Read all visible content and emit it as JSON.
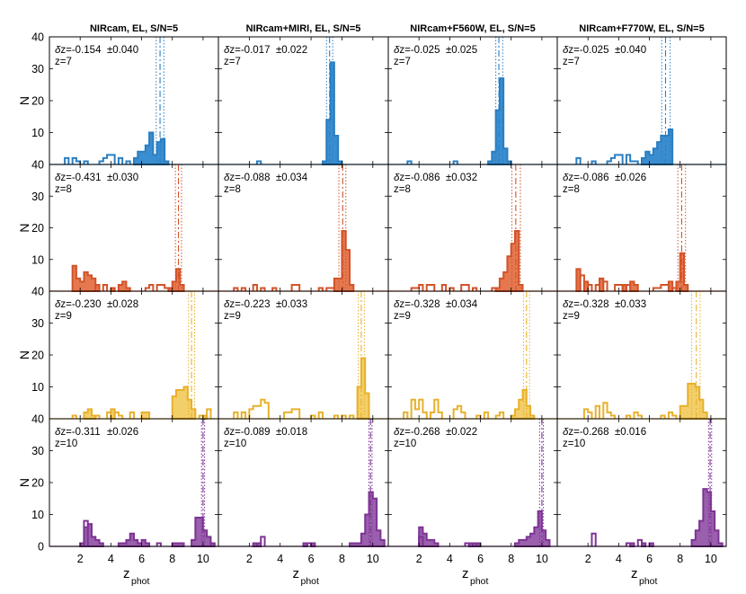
{
  "chart_data": {
    "type": "bar",
    "ylabel": "N",
    "xlabel_main": "z",
    "xlabel_sub": "phot",
    "xlim": [
      0,
      11
    ],
    "ylim": [
      0,
      40
    ],
    "xticks": [
      2,
      4,
      6,
      8,
      10
    ],
    "yticks": [
      0,
      10,
      20,
      30,
      40
    ],
    "grid": false,
    "columns": [
      "NIRcam, EL, S/N=5",
      "NIRcam+MIRI, EL, S/N=5",
      "NIRcam+F560W, EL, S/N=5",
      "NIRcam+F770W, EL, S/N=5"
    ],
    "rows": [
      {
        "label": "z=7",
        "true_z": 7,
        "color": "#2a7ec1",
        "fill": "#3a8ed0"
      },
      {
        "label": "z=8",
        "true_z": 8,
        "color": "#d2532a",
        "fill": "#e5784f"
      },
      {
        "label": "z=9",
        "true_z": 9,
        "color": "#e8b12c",
        "fill": "#f3cf6a"
      },
      {
        "label": "z=10",
        "true_z": 10,
        "color": "#7d3494",
        "fill": "#9a5fad"
      }
    ],
    "bin_edges_start": 0,
    "bin_width": 0.25,
    "panels": [
      {
        "row": 0,
        "col": 0,
        "dz": "-0.154",
        "err": "±0.040",
        "center": 7.2,
        "lo": 6.95,
        "hi": 7.45,
        "open": {
          "1.0": 2,
          "1.5": 2,
          "1.75": 1,
          "2.25": 1,
          "3.25": 1,
          "3.5": 2,
          "3.75": 3,
          "4.0": 3,
          "4.5": 2,
          "5.0": 1
        },
        "filled": {
          "5.5": 2,
          "5.75": 4,
          "6.0": 4,
          "6.25": 6,
          "6.5": 10,
          "6.75": 3,
          "7.0": 7,
          "7.25": 8,
          "7.5": 1
        }
      },
      {
        "row": 0,
        "col": 1,
        "dz": "-0.017",
        "err": "±0.022",
        "center": 7.2,
        "lo": 7.0,
        "hi": 7.4,
        "open": {
          "2.5": 1
        },
        "filled": {
          "6.75": 1,
          "7.0": 14,
          "7.25": 32,
          "7.5": 9,
          "7.75": 1
        }
      },
      {
        "row": 0,
        "col": 2,
        "dz": "-0.025",
        "err": "±0.025",
        "center": 7.2,
        "lo": 7.0,
        "hi": 7.45,
        "open": {
          "1.25": 1,
          "4.25": 1
        },
        "filled": {
          "6.5": 1,
          "6.75": 4,
          "7.0": 17,
          "7.25": 27,
          "7.5": 5,
          "7.75": 1
        }
      },
      {
        "row": 0,
        "col": 3,
        "dz": "-0.025",
        "err": "±0.040",
        "center": 7.05,
        "lo": 6.8,
        "hi": 7.35,
        "open": {
          "1.25": 2,
          "2.25": 1,
          "3.25": 1,
          "3.5": 2,
          "3.75": 3,
          "4.0": 3,
          "4.5": 3,
          "4.75": 1,
          "5.0": 1
        },
        "filled": {
          "5.5": 2,
          "5.75": 4,
          "6.0": 3,
          "6.25": 5,
          "6.5": 7,
          "6.75": 9,
          "7.0": 9,
          "7.25": 11
        }
      },
      {
        "row": 1,
        "col": 0,
        "dz": "-0.431",
        "err": "±0.030",
        "center": 8.4,
        "lo": 8.2,
        "hi": 8.6,
        "open": {
          "3.0": 2,
          "3.5": 2,
          "6.25": 1,
          "6.5": 2,
          "7.0": 2,
          "7.25": 2,
          "7.5": 1
        },
        "filled": {
          "1.5": 8,
          "1.75": 4,
          "2.0": 3,
          "2.25": 6,
          "2.5": 5,
          "2.75": 4,
          "3.0": 2,
          "4.0": 1,
          "4.5": 2,
          "4.75": 3,
          "5.0": 1,
          "7.75": 1,
          "8.0": 3,
          "8.25": 7,
          "8.5": 2
        }
      },
      {
        "row": 1,
        "col": 1,
        "dz": "-0.088",
        "err": "±0.034",
        "center": 8.05,
        "lo": 7.8,
        "hi": 8.25,
        "open": {
          "1.0": 1,
          "1.5": 1,
          "2.25": 2,
          "2.75": 1,
          "3.5": 1,
          "4.75": 2,
          "5.0": 2,
          "6.5": 1,
          "7.0": 1,
          "7.25": 1
        },
        "filled": {
          "7.5": 4,
          "7.75": 4,
          "8.0": 19,
          "8.25": 13,
          "8.5": 2
        }
      },
      {
        "row": 1,
        "col": 2,
        "dz": "-0.086",
        "err": "±0.032",
        "center": 8.3,
        "lo": 8.05,
        "hi": 8.6,
        "open": {
          "1.5": 1,
          "1.75": 1,
          "2.0": 2,
          "2.5": 2,
          "2.75": 2,
          "3.5": 2,
          "4.0": 1,
          "4.75": 2,
          "5.0": 2,
          "5.5": 1,
          "6.75": 1
        },
        "filled": {
          "7.0": 1,
          "7.25": 4,
          "7.5": 6,
          "7.75": 11,
          "8.0": 15,
          "8.25": 19,
          "8.5": 2
        }
      },
      {
        "row": 1,
        "col": 3,
        "dz": "-0.086",
        "err": "±0.026",
        "center": 8.1,
        "lo": 7.85,
        "hi": 8.35,
        "open": {
          "1.5": 5,
          "2.0": 2,
          "2.5": 2,
          "3.0": 3,
          "3.75": 2,
          "4.0": 2,
          "4.5": 2,
          "6.25": 1,
          "6.5": 1,
          "6.75": 2,
          "7.0": 2,
          "7.5": 1
        },
        "filled": {
          "1.25": 7,
          "1.75": 3,
          "2.75": 4,
          "4.25": 2,
          "4.75": 3,
          "5.0": 2,
          "7.25": 3,
          "7.75": 3,
          "8.0": 12,
          "8.25": 2
        }
      },
      {
        "row": 2,
        "col": 0,
        "dz": "-0.230",
        "err": "±0.028",
        "center": 9.25,
        "lo": 9.05,
        "hi": 9.45,
        "open": {
          "1.5": 1,
          "3.0": 1,
          "3.75": 2,
          "4.25": 2,
          "4.5": 1,
          "5.25": 2,
          "9.75": 1,
          "10.25": 3
        },
        "filled": {
          "2.25": 2,
          "2.5": 3,
          "2.75": 1,
          "4.0": 3,
          "6.0": 2,
          "6.25": 2,
          "8.0": 7,
          "8.25": 9,
          "8.5": 9,
          "8.75": 10,
          "9.0": 6,
          "9.25": 3,
          "10.0": 1
        }
      },
      {
        "row": 2,
        "col": 1,
        "dz": "-0.223",
        "err": "±0.033",
        "center": 9.25,
        "lo": 9.05,
        "hi": 9.45,
        "open": {
          "1.0": 2,
          "1.5": 2,
          "2.0": 3,
          "2.25": 4,
          "2.5": 4,
          "2.75": 6,
          "3.0": 5,
          "4.25": 2,
          "4.5": 2,
          "4.75": 3,
          "5.0": 3,
          "6.0": 1,
          "6.5": 2,
          "7.5": 1,
          "8.0": 1,
          "8.5": 1
        },
        "filled": {
          "9.0": 10,
          "9.25": 19,
          "9.5": 8
        }
      },
      {
        "row": 2,
        "col": 2,
        "dz": "-0.328",
        "err": "±0.034",
        "center": 9.0,
        "lo": 8.8,
        "hi": 9.2,
        "open": {
          "1.0": 2,
          "1.5": 6,
          "1.75": 3,
          "2.0": 6,
          "2.25": 2,
          "2.75": 2,
          "3.0": 6,
          "3.25": 2,
          "4.25": 3,
          "4.5": 4,
          "4.75": 2,
          "5.75": 1,
          "6.25": 2,
          "7.0": 1,
          "7.25": 2
        },
        "filled": {
          "8.0": 1,
          "8.25": 3,
          "8.5": 6,
          "8.75": 9,
          "9.0": 4,
          "9.25": 1
        }
      },
      {
        "row": 2,
        "col": 3,
        "dz": "-0.328",
        "err": "±0.033",
        "center": 9.05,
        "lo": 8.75,
        "hi": 9.3,
        "open": {
          "1.75": 3,
          "2.0": 2,
          "2.5": 4,
          "3.0": 5,
          "3.25": 2,
          "3.5": 1,
          "4.5": 1,
          "5.0": 2,
          "5.25": 1,
          "6.75": 1,
          "7.25": 2,
          "7.5": 1
        },
        "filled": {
          "8.0": 4,
          "8.25": 4,
          "8.5": 11,
          "8.75": 11,
          "9.0": 10,
          "9.25": 6,
          "9.5": 2
        }
      },
      {
        "row": 3,
        "col": 0,
        "dz": "-0.311",
        "err": "±0.026",
        "center": 10.0,
        "lo": 9.9,
        "hi": 10.1,
        "open": {
          "2.25": 8,
          "7.0": 1,
          "10.5": 1
        },
        "filled": {
          "2.0": 1,
          "2.25": 6,
          "2.5": 7,
          "2.75": 3,
          "3.0": 2,
          "3.25": 1,
          "4.5": 1,
          "4.75": 1,
          "5.0": 2,
          "5.25": 4,
          "5.5": 2,
          "5.75": 1,
          "6.0": 2,
          "6.25": 1,
          "8.0": 1,
          "8.25": 1,
          "8.5": 1,
          "9.25": 2,
          "9.5": 9,
          "9.75": 9,
          "10.0": 5,
          "10.25": 3,
          "10.5": 1
        }
      },
      {
        "row": 3,
        "col": 1,
        "dz": "-0.089",
        "err": "±0.018",
        "center": 9.85,
        "lo": 9.75,
        "hi": 9.95,
        "open": {
          "2.5": 1,
          "2.75": 3,
          "5.75": 1
        },
        "filled": {
          "2.25": 1,
          "2.5": 1,
          "5.5": 1,
          "6.0": 1,
          "8.5": 1,
          "8.75": 1,
          "9.0": 1,
          "9.25": 4,
          "9.5": 10,
          "9.75": 17,
          "10.0": 15,
          "10.25": 5,
          "10.5": 2
        }
      },
      {
        "row": 3,
        "col": 2,
        "dz": "-0.268",
        "err": "±0.022",
        "center": 10.0,
        "lo": 9.85,
        "hi": 10.1,
        "open": {
          "2.0": 3,
          "5.0": 1,
          "5.5": 1
        },
        "filled": {
          "2.0": 6,
          "2.25": 4,
          "2.5": 2,
          "2.75": 2,
          "3.0": 1,
          "5.25": 1,
          "5.5": 1,
          "5.75": 1,
          "8.25": 1,
          "8.5": 2,
          "8.75": 2,
          "9.0": 3,
          "9.25": 4,
          "9.5": 6,
          "9.75": 11,
          "10.0": 5,
          "10.25": 2
        }
      },
      {
        "row": 3,
        "col": 3,
        "dz": "-0.268",
        "err": "±0.016",
        "center": 9.95,
        "lo": 9.85,
        "hi": 10.05,
        "open": {
          "2.25": 4,
          "4.5": 1,
          "5.25": 2
        },
        "filled": {
          "4.75": 1,
          "5.5": 1,
          "6.0": 1,
          "8.75": 2,
          "9.0": 5,
          "9.25": 8,
          "9.5": 18,
          "9.75": 17,
          "10.0": 11,
          "10.25": 5,
          "10.5": 1
        }
      }
    ]
  }
}
